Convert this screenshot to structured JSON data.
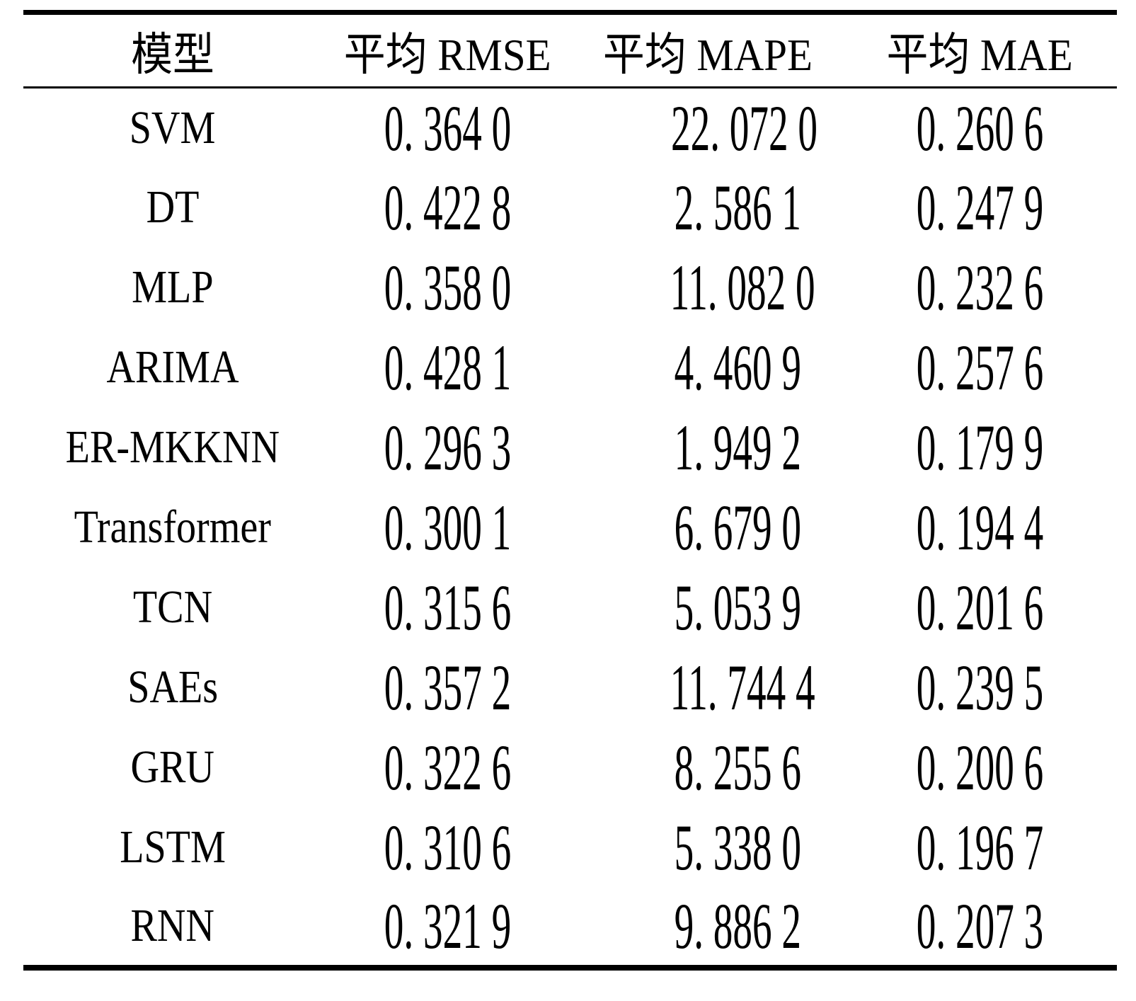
{
  "table": {
    "header": {
      "model": "模型",
      "rmse": "平均 RMSE",
      "mape": "平均 MAPE",
      "mae": "平均 MAE"
    },
    "rows": [
      {
        "model": "SVM",
        "rmse": "0. 364 0",
        "mape": "22. 072 0",
        "mae": "0. 260 6"
      },
      {
        "model": "DT",
        "rmse": "0. 422 8",
        "mape": "2. 586 1",
        "mae": "0. 247 9"
      },
      {
        "model": "MLP",
        "rmse": "0. 358 0",
        "mape": "11. 082 0",
        "mae": "0. 232 6"
      },
      {
        "model": "ARIMA",
        "rmse": "0. 428 1",
        "mape": "4. 460 9",
        "mae": "0. 257 6"
      },
      {
        "model": "ER-MKKNN",
        "rmse": "0. 296 3",
        "mape": "1. 949 2",
        "mae": "0. 179 9"
      },
      {
        "model": "Transformer",
        "rmse": "0. 300 1",
        "mape": "6. 679 0",
        "mae": "0. 194 4"
      },
      {
        "model": "TCN",
        "rmse": "0. 315 6",
        "mape": "5. 053 9",
        "mae": "0. 201 6"
      },
      {
        "model": "SAEs",
        "rmse": "0. 357 2",
        "mape": "11. 744 4",
        "mae": "0. 239 5"
      },
      {
        "model": "GRU",
        "rmse": "0. 322 6",
        "mape": "8. 255 6",
        "mae": "0. 200 6"
      },
      {
        "model": "LSTM",
        "rmse": "0. 310 6",
        "mape": "5. 338 0",
        "mae": "0. 196 7"
      },
      {
        "model": "RNN",
        "rmse": "0. 321 9",
        "mape": "9. 886 2",
        "mae": "0. 207 3"
      }
    ]
  },
  "chart_data": {
    "type": "table",
    "columns": [
      "模型",
      "平均 RMSE",
      "平均 MAPE",
      "平均 MAE"
    ],
    "rows": [
      [
        "SVM",
        0.364,
        22.072,
        0.2606
      ],
      [
        "DT",
        0.4228,
        2.5861,
        0.2479
      ],
      [
        "MLP",
        0.358,
        11.082,
        0.2326
      ],
      [
        "ARIMA",
        0.4281,
        4.4609,
        0.2576
      ],
      [
        "ER-MKKNN",
        0.2963,
        1.9492,
        0.1799
      ],
      [
        "Transformer",
        0.3001,
        6.679,
        0.1944
      ],
      [
        "TCN",
        0.3156,
        5.0539,
        0.2016
      ],
      [
        "SAEs",
        0.3572,
        11.7444,
        0.2395
      ],
      [
        "GRU",
        0.3226,
        8.2556,
        0.2006
      ],
      [
        "LSTM",
        0.3106,
        5.338,
        0.1967
      ],
      [
        "RNN",
        0.3219,
        9.8862,
        0.2073
      ]
    ]
  },
  "colors": {
    "background": "#ffffff",
    "text": "#000000",
    "rule": "#000000"
  }
}
